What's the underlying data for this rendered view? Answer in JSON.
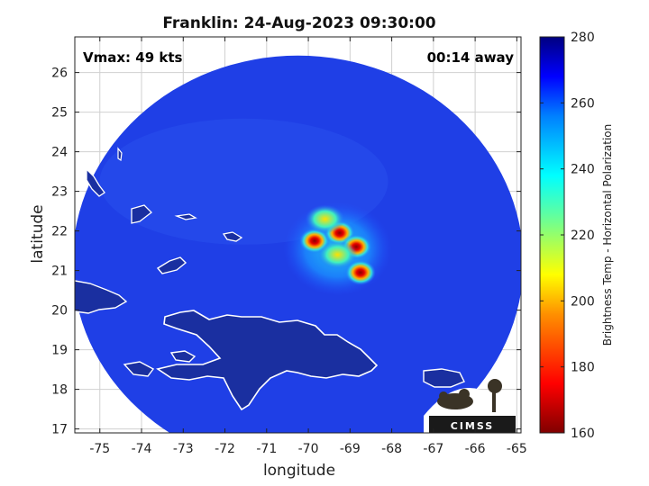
{
  "chart_data": {
    "type": "heatmap",
    "title": "Franklin: 24-Aug-2023 09:30:00",
    "annotations": {
      "vmax": "Vmax: 49 kts",
      "time_offset": "00:14 away"
    },
    "xlabel": "longitude",
    "ylabel": "latitude",
    "xlim": [
      -75.6,
      -64.9
    ],
    "ylim": [
      16.9,
      26.9
    ],
    "xticks": [
      -75,
      -74,
      -73,
      -72,
      -71,
      -70,
      -69,
      -68,
      -67,
      -66,
      -65
    ],
    "xtick_labels": [
      "-75",
      "-74",
      "-73",
      "-72",
      "-71",
      "-70",
      "-69",
      "-68",
      "-67",
      "-66",
      "-65"
    ],
    "yticks": [
      17,
      18,
      19,
      20,
      21,
      22,
      23,
      24,
      25,
      26
    ],
    "ytick_labels": [
      "17",
      "18",
      "19",
      "20",
      "21",
      "22",
      "23",
      "24",
      "25",
      "26"
    ],
    "grid": true,
    "colorbar": {
      "label": "Brightness Temp - Horizontal Polarization",
      "range": [
        160,
        280
      ],
      "ticks": [
        160,
        180,
        200,
        220,
        240,
        260,
        280
      ],
      "tick_labels": [
        "160",
        "180",
        "200",
        "220",
        "240",
        "260",
        "280"
      ],
      "colormap": "jet"
    },
    "swath": {
      "center_lon": -70.25,
      "center_lat": 21.2,
      "background_temp": 258
    },
    "cold_cores": [
      {
        "lon": -69.85,
        "lat": 21.75,
        "temp": 170
      },
      {
        "lon": -69.25,
        "lat": 21.95,
        "temp": 168
      },
      {
        "lon": -68.85,
        "lat": 21.6,
        "temp": 172
      },
      {
        "lon": -68.75,
        "lat": 20.95,
        "temp": 166
      },
      {
        "lon": -69.3,
        "lat": 21.4,
        "temp": 195
      },
      {
        "lon": -69.6,
        "lat": 22.3,
        "temp": 225
      }
    ],
    "logo_text": "CIMSS"
  },
  "colors": {
    "background_warm": "#1f3fe6",
    "land_outline": "#ffffff",
    "land_fill": "#1a2f9e",
    "frame": "#222222"
  }
}
